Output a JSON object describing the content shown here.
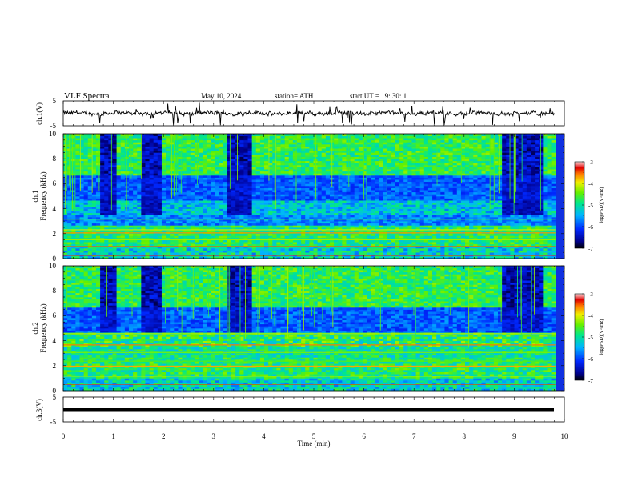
{
  "header": {
    "title": "VLF  Spectra",
    "date": "May 10, 2024",
    "station": "station= ATH",
    "start": "start  UT  =    19: 30: 1"
  },
  "chart_data": [
    {
      "type": "line",
      "panel": "waveform-ch1",
      "ylabel": "ch.1(V)",
      "ylim": [
        -5,
        5
      ],
      "yticks": [
        "5",
        "-5"
      ],
      "xlim": [
        0,
        10
      ],
      "color": "#000000",
      "baseline": 0,
      "note_values": "noisy trace near 0 V with downward spikes"
    },
    {
      "type": "heatmap",
      "panel": "spectrogram-ch1",
      "ylabel": "ch.1",
      "ylabel2": "Frequency  (kHz)",
      "ylim": [
        0,
        10
      ],
      "yticks": [
        "0",
        "2",
        "4",
        "6",
        "8",
        "10"
      ],
      "xlim": [
        0,
        10
      ],
      "colorbar": {
        "label": "log(PSD)(V²/Hz)",
        "ticks": [
          "-3",
          "-4",
          "-5",
          "-6",
          "-7"
        ],
        "range": [
          -7,
          -3
        ]
      },
      "quiet_intervals_min": [
        [
          0.75,
          1.05
        ],
        [
          1.55,
          1.95
        ],
        [
          3.3,
          3.8
        ],
        [
          8.75,
          9.6
        ]
      ]
    },
    {
      "type": "heatmap",
      "panel": "spectrogram-ch2",
      "ylabel": "ch.2",
      "ylabel2": "Frequency  (kHz)",
      "ylim": [
        0,
        10
      ],
      "yticks": [
        "0",
        "2",
        "4",
        "6",
        "8",
        "10"
      ],
      "xlim": [
        0,
        10
      ],
      "colorbar": {
        "label": "log(PSD)(V²/Hz)",
        "ticks": [
          "-3",
          "-4",
          "-5",
          "-6",
          "-7"
        ],
        "range": [
          -7,
          -3
        ]
      },
      "quiet_intervals_min": [
        [
          0.75,
          1.05
        ],
        [
          1.55,
          1.95
        ],
        [
          3.3,
          3.8
        ],
        [
          8.75,
          9.6
        ]
      ]
    },
    {
      "type": "line",
      "panel": "waveform-ch3",
      "ylabel": "ch.3(V)",
      "ylim": [
        -5,
        5
      ],
      "yticks": [
        "5",
        "-5"
      ],
      "xlim": [
        0,
        10
      ],
      "xlabel": "Time  (min)",
      "xticks": [
        "0",
        "1",
        "2",
        "3",
        "4",
        "5",
        "6",
        "7",
        "8",
        "9",
        "10"
      ],
      "color": "#000000",
      "baseline": 0
    }
  ]
}
